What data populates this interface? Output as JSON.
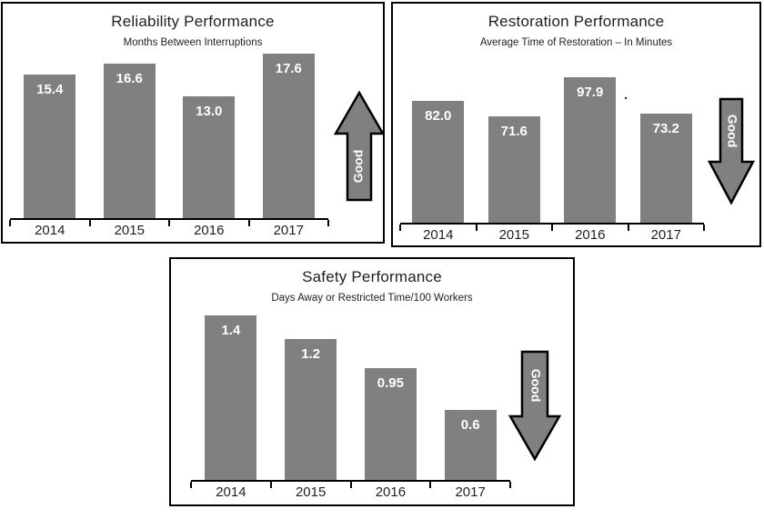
{
  "colors": {
    "bar": "#808080",
    "arrow_fill": "#808080",
    "arrow_outline": "#000000",
    "value_label": "#ffffff",
    "text": "#1f1f1f",
    "panel_border": "#000000",
    "background": "#ffffff"
  },
  "chart_data": [
    {
      "type": "bar",
      "title": "Reliability Performance",
      "subtitle": "Months Between Interruptions",
      "categories": [
        "2014",
        "2015",
        "2016",
        "2017"
      ],
      "values": [
        15.4,
        16.6,
        13.0,
        17.6
      ],
      "value_labels": [
        "15.4",
        "16.6",
        "13.0",
        "17.6"
      ],
      "ylim": [
        0,
        18.5
      ],
      "xlabel": "",
      "ylabel": "Months Between Interruptions",
      "grid": false,
      "legend": "none",
      "good_direction": "up",
      "good_label": "Good"
    },
    {
      "type": "bar",
      "title": "Restoration Performance",
      "subtitle": "Average Time of Restoration – In Minutes",
      "categories": [
        "2014",
        "2015",
        "2016",
        "2017"
      ],
      "values": [
        82.0,
        71.6,
        97.9,
        73.2
      ],
      "value_labels": [
        "82.0",
        "71.6",
        "97.9",
        "73.2"
      ],
      "ylim": [
        0,
        110
      ],
      "xlabel": "",
      "ylabel": "Average Time of Restoration – In Minutes",
      "grid": false,
      "legend": "none",
      "good_direction": "down",
      "good_label": "Good",
      "stray_mark": "."
    },
    {
      "type": "bar",
      "title": "Safety Performance",
      "subtitle": "Days Away or Restricted Time/100 Workers",
      "categories": [
        "2014",
        "2015",
        "2016",
        "2017"
      ],
      "values": [
        1.4,
        1.2,
        0.95,
        0.6
      ],
      "value_labels": [
        "1.4",
        "1.2",
        "0.95",
        "0.6"
      ],
      "ylim": [
        0,
        1.55
      ],
      "xlabel": "",
      "ylabel": "Days Away or Restricted Time/100 Workers",
      "grid": false,
      "legend": "none",
      "good_direction": "down",
      "good_label": "Good"
    }
  ]
}
